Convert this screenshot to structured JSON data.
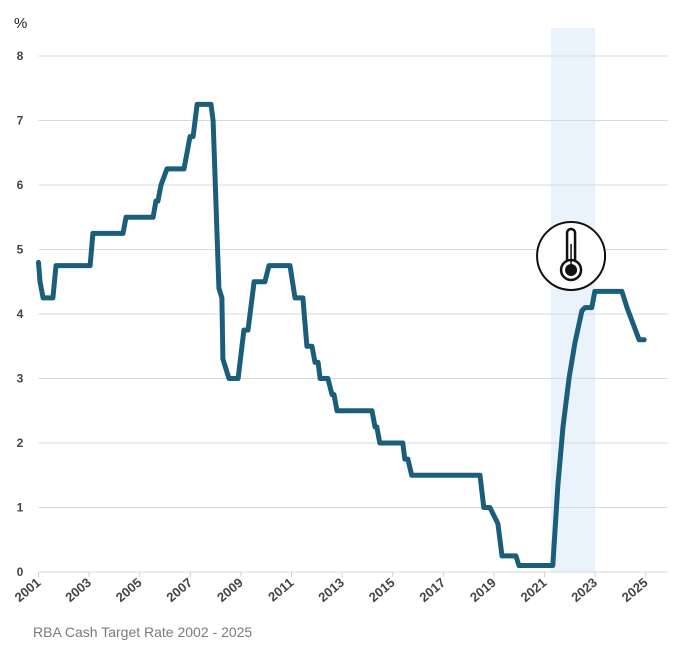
{
  "chart_data": {
    "type": "line",
    "title": "",
    "caption": "RBA Cash Target Rate 2002 - 2025",
    "ylabel": "%",
    "xlabel": "",
    "xlim": [
      2001,
      2026
    ],
    "ylim": [
      0,
      8
    ],
    "x_ticks": [
      2001,
      2003,
      2005,
      2007,
      2009,
      2011,
      2013,
      2015,
      2017,
      2019,
      2021,
      2023,
      2025
    ],
    "y_ticks": [
      0,
      1,
      2,
      3,
      4,
      5,
      6,
      7,
      8
    ],
    "grid": "horizontal",
    "line_color": "#1b5e7b",
    "highlight_band": {
      "from": 2021.25,
      "to": 2023.0,
      "color": "#eaf2fc"
    },
    "annotation_icon": {
      "icon": "thermometer-icon",
      "x": 2022.05,
      "y": 4.9
    },
    "series": [
      {
        "x": [
          2001.0,
          2001.06,
          2001.18,
          2001.57,
          2001.69,
          2003.04,
          2003.15,
          2004.34,
          2004.46,
          2005.53,
          2005.64,
          2005.72,
          2005.84,
          2006.08,
          2006.75,
          2006.87,
          2006.99,
          2007.11,
          2007.27,
          2007.42,
          2007.82,
          2007.9,
          2008.13,
          2008.25,
          2008.29,
          2008.53,
          2008.89,
          2009.12,
          2009.28,
          2009.52,
          2009.95,
          2010.11,
          2010.94,
          2011.14,
          2011.45,
          2011.61,
          2011.81,
          2011.93,
          2012.05,
          2012.13,
          2012.44,
          2012.6,
          2012.68,
          2012.8,
          2014.18,
          2014.3,
          2014.37,
          2014.49,
          2015.4,
          2015.48,
          2015.6,
          2015.75,
          2018.45,
          2018.6,
          2018.84,
          2019.16,
          2019.32,
          2019.87,
          2019.99,
          2021.33,
          2021.53,
          2021.73,
          2021.97,
          2022.2,
          2022.48,
          2022.6,
          2022.87,
          2022.99,
          2024.06,
          2024.26,
          2024.5,
          2024.74,
          2024.94
        ],
        "y": [
          4.8,
          4.5,
          4.25,
          4.25,
          4.75,
          4.75,
          5.25,
          5.25,
          5.5,
          5.5,
          5.75,
          5.75,
          6.0,
          6.25,
          6.25,
          6.5,
          6.75,
          6.75,
          7.25,
          7.25,
          7.25,
          7.0,
          4.4,
          4.25,
          3.3,
          3.0,
          3.0,
          3.75,
          3.75,
          4.5,
          4.5,
          4.75,
          4.75,
          4.25,
          4.25,
          3.5,
          3.5,
          3.25,
          3.25,
          3.0,
          3.0,
          2.75,
          2.75,
          2.5,
          2.5,
          2.25,
          2.25,
          2.0,
          2.0,
          1.75,
          1.75,
          1.5,
          1.5,
          1.0,
          1.0,
          0.75,
          0.25,
          0.25,
          0.1,
          0.1,
          1.35,
          2.25,
          3.0,
          3.55,
          4.05,
          4.1,
          4.1,
          4.35,
          4.35,
          4.1,
          3.85,
          3.6,
          3.6
        ]
      }
    ]
  }
}
